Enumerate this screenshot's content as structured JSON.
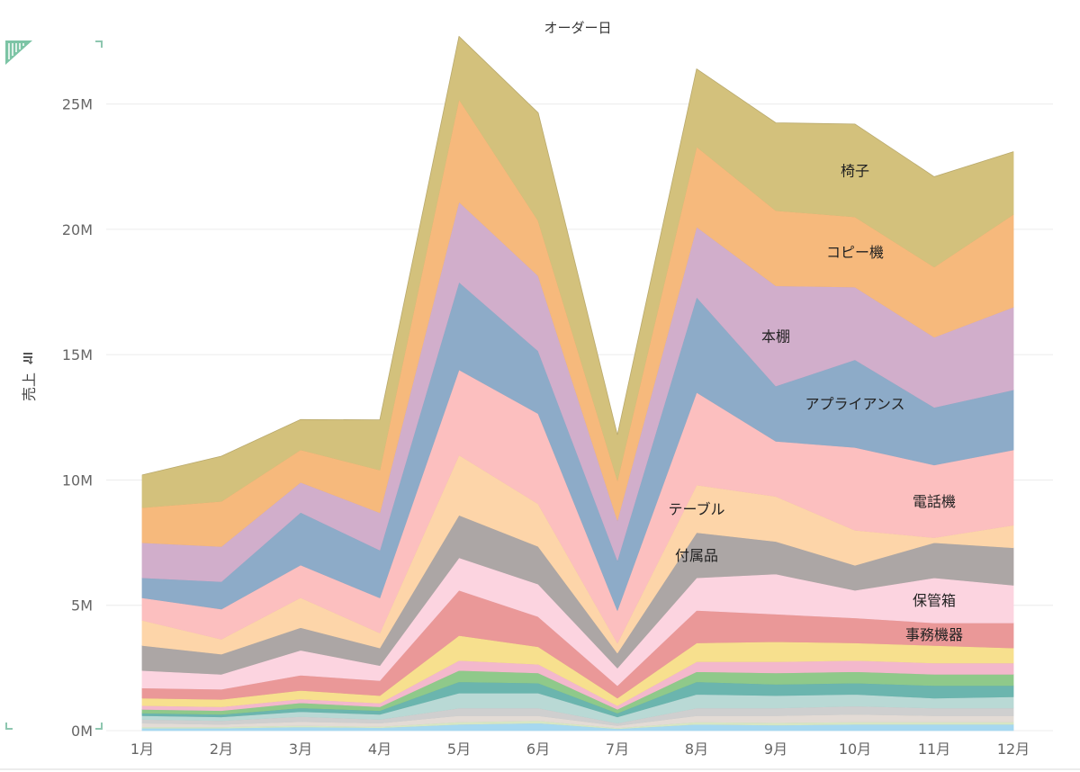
{
  "chart_data": {
    "type": "area",
    "stacked": true,
    "xlabel": "オーダー日",
    "ylabel": "売上",
    "categories": [
      "1月",
      "2月",
      "3月",
      "4月",
      "5月",
      "6月",
      "7月",
      "8月",
      "9月",
      "10月",
      "11月",
      "12月"
    ],
    "ylim": [
      0,
      27500000
    ],
    "yticks": [
      0,
      5000000,
      10000000,
      15000000,
      20000000,
      25000000
    ],
    "ytick_labels": [
      "0M",
      "5M",
      "10M",
      "15M",
      "20M",
      "25M"
    ],
    "grid": true,
    "legend": "none",
    "series": [
      {
        "color": "#a6d8f0",
        "values": [
          100000,
          100000,
          150000,
          120000,
          250000,
          300000,
          80000,
          250000,
          220000,
          250000,
          250000,
          250000
        ]
      },
      {
        "color": "#d6e6c3",
        "values": [
          50000,
          50000,
          60000,
          50000,
          100000,
          100000,
          30000,
          100000,
          100000,
          100000,
          100000,
          100000
        ]
      },
      {
        "color": "#e3dbd5",
        "values": [
          150000,
          100000,
          150000,
          130000,
          250000,
          200000,
          90000,
          250000,
          280000,
          300000,
          250000,
          250000
        ]
      },
      {
        "color": "#cfcfcf",
        "values": [
          150000,
          150000,
          200000,
          150000,
          300000,
          300000,
          100000,
          300000,
          300000,
          330000,
          300000,
          300000
        ]
      },
      {
        "color": "#b9d9d5",
        "values": [
          150000,
          150000,
          200000,
          200000,
          600000,
          600000,
          250000,
          550000,
          500000,
          470000,
          400000,
          450000
        ]
      },
      {
        "color": "#6bb5ae",
        "values": [
          100000,
          100000,
          150000,
          150000,
          450000,
          400000,
          150000,
          500000,
          450000,
          450000,
          500000,
          450000
        ]
      },
      {
        "color": "#8fc98a",
        "values": [
          150000,
          150000,
          200000,
          150000,
          450000,
          400000,
          150000,
          400000,
          450000,
          450000,
          450000,
          450000
        ]
      },
      {
        "color": "#f3b8cc",
        "values": [
          150000,
          150000,
          150000,
          150000,
          400000,
          350000,
          150000,
          400000,
          450000,
          450000,
          450000,
          450000
        ]
      },
      {
        "color": "#f7e08e",
        "values": [
          300000,
          300000,
          350000,
          300000,
          1000000,
          700000,
          300000,
          750000,
          800000,
          700000,
          700000,
          600000
        ]
      },
      {
        "color": "#ea9898",
        "values": [
          400000,
          400000,
          600000,
          600000,
          1800000,
          1200000,
          500000,
          1300000,
          1100000,
          1000000,
          900000,
          1000000
        ]
      },
      {
        "color": "#fcd4e0",
        "values": [
          700000,
          600000,
          1000000,
          600000,
          1300000,
          1300000,
          700000,
          1300000,
          1600000,
          1100000,
          1800000,
          1500000
        ]
      },
      {
        "color": "#aca6a5",
        "values": [
          1000000,
          800000,
          900000,
          700000,
          1700000,
          1500000,
          600000,
          1800000,
          1300000,
          1000000,
          1400000,
          1500000
        ]
      },
      {
        "name": "テーブル",
        "color": "#fdd5a9",
        "values": [
          1000000,
          600000,
          1200000,
          600000,
          2400000,
          1700000,
          400000,
          1900000,
          1800000,
          1400000,
          200000,
          900000
        ]
      },
      {
        "name": "電話機",
        "color": "#fcbfbf",
        "values": [
          900000,
          1200000,
          1300000,
          1400000,
          3400000,
          3600000,
          1300000,
          3700000,
          2200000,
          3300000,
          2900000,
          3000000
        ]
      },
      {
        "name": "アプライアンス",
        "color": "#8dabc8",
        "values": [
          800000,
          1100000,
          2100000,
          1900000,
          3500000,
          2500000,
          2000000,
          3800000,
          2200000,
          3500000,
          2300000,
          2400000
        ]
      },
      {
        "name": "本棚",
        "color": "#d1aecb",
        "values": [
          1400000,
          1400000,
          1200000,
          1500000,
          3200000,
          3000000,
          1600000,
          2800000,
          4000000,
          2900000,
          2800000,
          3300000
        ]
      },
      {
        "name": "コピー機",
        "color": "#f6b97c",
        "values": [
          1400000,
          1800000,
          1300000,
          1700000,
          4100000,
          2200000,
          1600000,
          3200000,
          3000000,
          2800000,
          2800000,
          3700000
        ]
      },
      {
        "name": "椅子",
        "color": "#d3c17c",
        "values": [
          1300000,
          1800000,
          1200000,
          2000000,
          2500000,
          4300000,
          1800000,
          3100000,
          3500000,
          3700000,
          3600000,
          2500000
        ]
      }
    ],
    "annotations": [
      {
        "text": "椅子",
        "category": "10月",
        "series": "椅子"
      },
      {
        "text": "コピー機",
        "category": "10月",
        "series": "コピー機"
      },
      {
        "text": "本棚",
        "category": "9月",
        "series": "本棚"
      },
      {
        "text": "アプライアンス",
        "category": "10月",
        "series": "アプライアンス"
      },
      {
        "text": "電話機",
        "category": "11月",
        "series": "電話機"
      },
      {
        "text": "テーブル",
        "category": "8月",
        "series": "テーブル"
      },
      {
        "text": "付属品",
        "category": "8月",
        "series_index": 11
      },
      {
        "text": "保管箱",
        "category": "11月",
        "series_index": 10
      },
      {
        "text": "事務機器",
        "category": "11月",
        "series_index": 9
      }
    ]
  }
}
